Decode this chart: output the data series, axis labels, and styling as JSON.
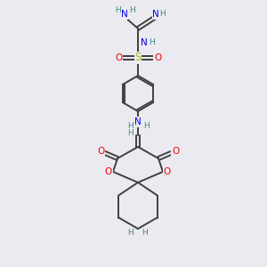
{
  "bg_color": "#eaeaf0",
  "atom_colors": {
    "C": "#404040",
    "N": "#0000ee",
    "O": "#ee0000",
    "S": "#bbbb00",
    "H": "#408888"
  },
  "bond_color": "#404040"
}
